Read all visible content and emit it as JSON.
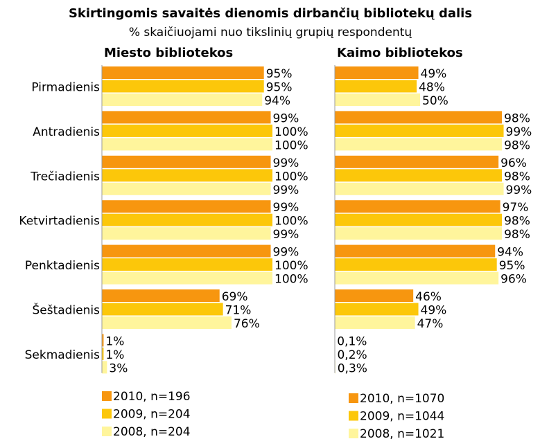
{
  "title": "Skirtingomis savaitės dienomis dirbančių bibliotekų dalis",
  "subtitle": "% skaičiuojami nuo tikslinių grupių respondentų",
  "chart_data": [
    {
      "type": "bar",
      "title": "Miesto bibliotekos",
      "categories": [
        "Pirmadienis",
        "Antradienis",
        "Trečiadienis",
        "Ketvirtadienis",
        "Penktadienis",
        "Šeštadienis",
        "Sekmadienis"
      ],
      "xlim": [
        0,
        100
      ],
      "series": [
        {
          "name": "2010, n=196",
          "color": "#f7960f",
          "values": [
            95,
            99,
            99,
            99,
            99,
            69,
            1
          ],
          "value_labels": [
            "95%",
            "99%",
            "99%",
            "99%",
            "99%",
            "69%",
            "1%"
          ]
        },
        {
          "name": "2009, n=204",
          "color": "#fcc70a",
          "values": [
            95,
            100,
            100,
            100,
            100,
            71,
            1
          ],
          "value_labels": [
            "95%",
            "100%",
            "100%",
            "100%",
            "100%",
            "71%",
            "1%"
          ]
        },
        {
          "name": "2008, n=204",
          "color": "#fff59c",
          "values": [
            94,
            100,
            99,
            99,
            100,
            76,
            3
          ],
          "value_labels": [
            "94%",
            "100%",
            "99%",
            "99%",
            "100%",
            "76%",
            "3%"
          ]
        }
      ]
    },
    {
      "type": "bar",
      "title": "Kaimo bibliotekos",
      "xlim": [
        0,
        100
      ],
      "series": [
        {
          "name": "2010, n=1070",
          "color": "#f7960f",
          "values": [
            49,
            98,
            96,
            97,
            94,
            46,
            0.1
          ],
          "value_labels": [
            "49%",
            "98%",
            "96%",
            "97%",
            "94%",
            "46%",
            "0,1%"
          ]
        },
        {
          "name": "2009, n=1044",
          "color": "#fcc70a",
          "values": [
            48,
            99,
            98,
            98,
            95,
            49,
            0.2
          ],
          "value_labels": [
            "48%",
            "99%",
            "98%",
            "98%",
            "95%",
            "49%",
            "0,2%"
          ]
        },
        {
          "name": "2008, n=1021",
          "color": "#fff59c",
          "values": [
            50,
            98,
            99,
            98,
            96,
            47,
            0.3
          ],
          "value_labels": [
            "50%",
            "98%",
            "99%",
            "98%",
            "96%",
            "47%",
            "0,3%"
          ]
        }
      ]
    }
  ]
}
